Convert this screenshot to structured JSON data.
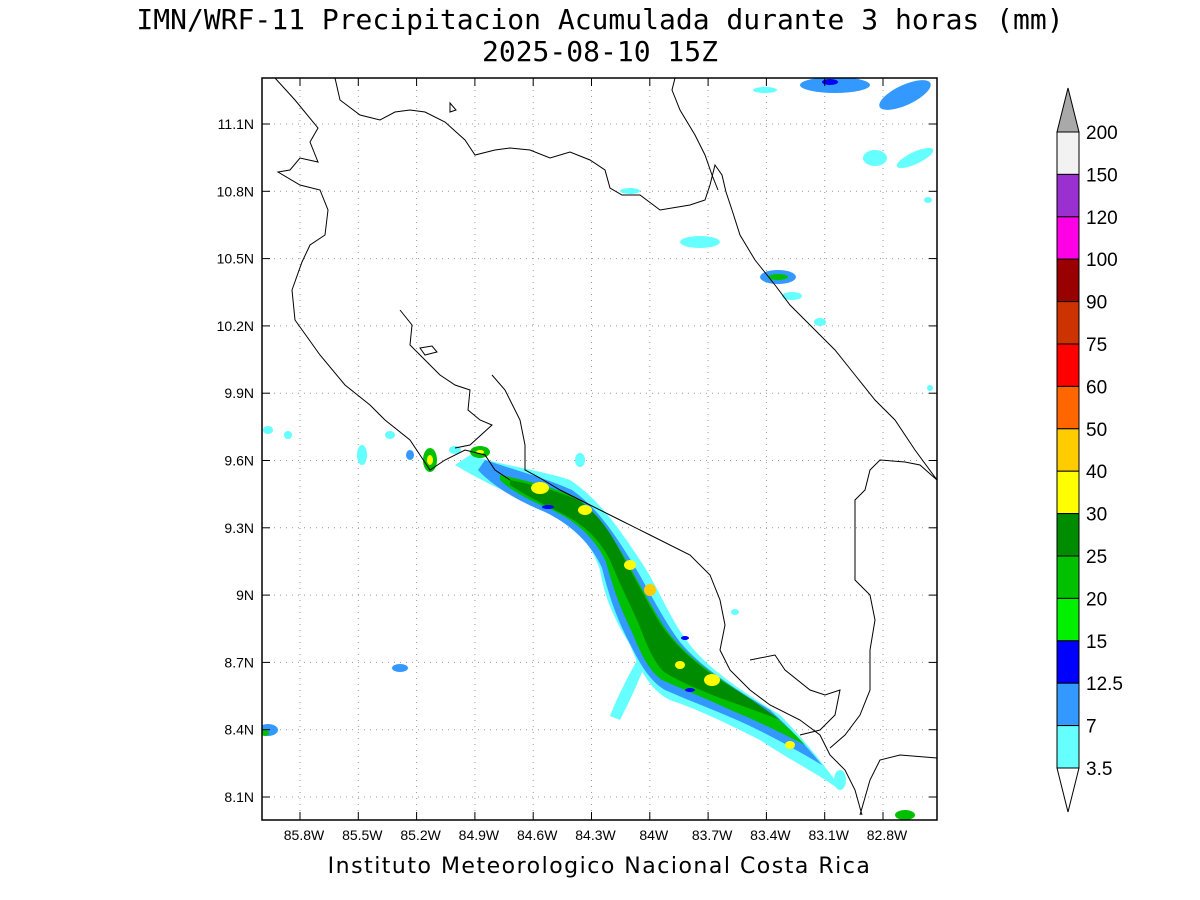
{
  "title": "IMN/WRF-11 Precipitacion Acumulada durante 3 horas (mm)",
  "subtitle": "2025-08-10 15Z",
  "footer": "Instituto Meteorologico Nacional Costa Rica",
  "map": {
    "region": "Costa Rica",
    "lon_range": [
      -86.0,
      -82.6
    ],
    "lat_range": [
      8.0,
      11.2
    ],
    "gridlines": true,
    "lat_ticks": [
      "11.1N",
      "10.8N",
      "10.5N",
      "10.2N",
      "9.9N",
      "9.6N",
      "9.3N",
      "9N",
      "8.7N",
      "8.4N",
      "8.1N"
    ],
    "lon_ticks": [
      "85.8W",
      "85.5W",
      "85.2W",
      "84.9W",
      "84.6W",
      "84.3W",
      "84W",
      "83.7W",
      "83.4W",
      "83.1W",
      "82.8W"
    ]
  },
  "colorbar": {
    "labels": [
      "200",
      "150",
      "120",
      "100",
      "90",
      "75",
      "60",
      "50",
      "40",
      "30",
      "25",
      "20",
      "15",
      "12.5",
      "7",
      "3.5"
    ],
    "colors": [
      "#f2f2f2",
      "#9b30d0",
      "#ff00e6",
      "#990000",
      "#cc3300",
      "#ff0000",
      "#ff6600",
      "#ffcc00",
      "#ffff00",
      "#008c00",
      "#00c000",
      "#00f000",
      "#0000ff",
      "#3399ff",
      "#66ffff"
    ],
    "top_arrow_color": "#a9a9a9",
    "bottom_arrow_color": "#ffffff"
  }
}
